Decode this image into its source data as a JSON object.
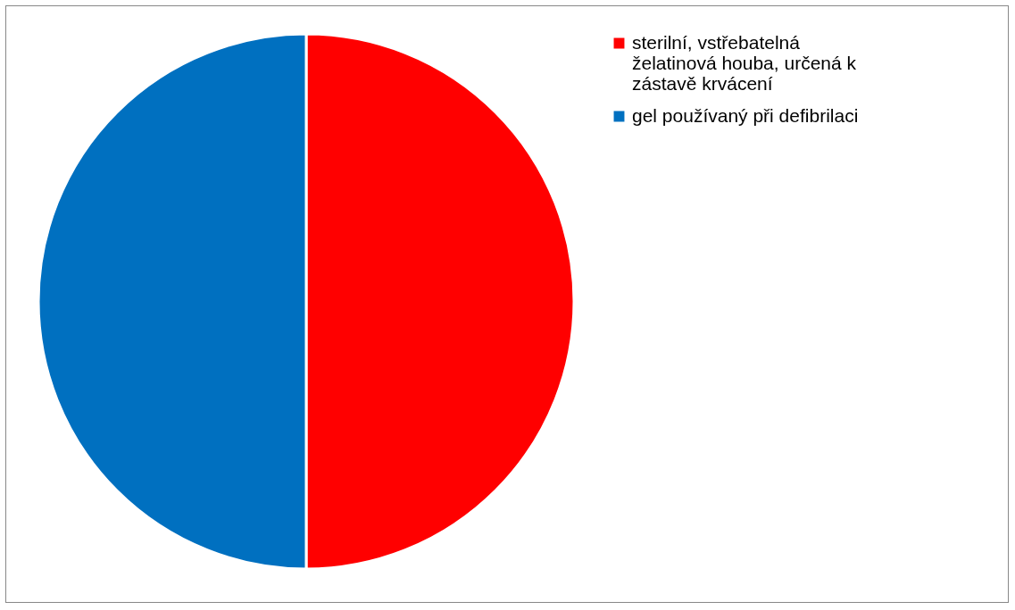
{
  "chart_data": {
    "type": "pie",
    "categories": [
      "sterilní, vstřebatelná želatinová houba, určená k zástavě krvácení",
      "gel používaný při defibrilaci"
    ],
    "values": [
      50,
      50
    ],
    "colors": [
      "#ff0000",
      "#0070c0"
    ],
    "legend": "right"
  }
}
